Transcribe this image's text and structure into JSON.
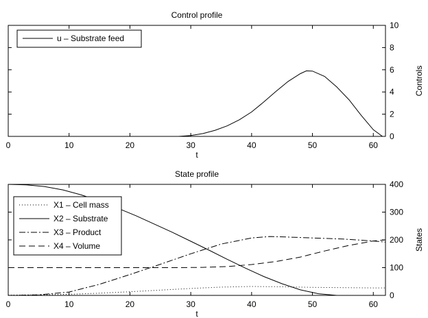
{
  "chart_data": [
    {
      "type": "line",
      "title": "Control profile",
      "xlabel": "t",
      "ylabel": "Controls",
      "xlim": [
        0,
        62
      ],
      "ylim": [
        0,
        10
      ],
      "xticks": [
        0,
        10,
        20,
        30,
        40,
        50,
        60
      ],
      "yticks": [
        0,
        2,
        4,
        6,
        8,
        10
      ],
      "y_axis_side": "right",
      "grid": false,
      "legend": "top-left",
      "series": [
        {
          "name": "u – Substrate feed",
          "style": "solid",
          "x": [
            0,
            28,
            30,
            32,
            34,
            36,
            38,
            40,
            42,
            44,
            46,
            48,
            49,
            50,
            52,
            54,
            56,
            58,
            60,
            61.5
          ],
          "y": [
            0,
            0,
            0.08,
            0.25,
            0.55,
            0.95,
            1.5,
            2.2,
            3.1,
            4.05,
            4.95,
            5.65,
            5.9,
            5.88,
            5.4,
            4.45,
            3.3,
            1.9,
            0.6,
            0
          ]
        }
      ]
    },
    {
      "type": "line",
      "title": "State profile",
      "xlabel": "t",
      "ylabel": "States",
      "xlim": [
        0,
        62
      ],
      "ylim": [
        0,
        400
      ],
      "xticks": [
        0,
        10,
        20,
        30,
        40,
        50,
        60
      ],
      "yticks": [
        0,
        100,
        200,
        300,
        400
      ],
      "y_axis_side": "right",
      "grid": false,
      "legend": "top-left",
      "series": [
        {
          "name": "X1 – Cell mass",
          "style": "dotted",
          "x": [
            0,
            5,
            10,
            15,
            20,
            25,
            30,
            35,
            40,
            45,
            50,
            55,
            60,
            62
          ],
          "y": [
            1,
            2,
            4,
            8,
            13,
            19,
            25,
            30,
            32,
            31,
            29,
            28,
            27,
            27
          ]
        },
        {
          "name": "X2 – Substrate",
          "style": "solid",
          "x": [
            0,
            3,
            6,
            9,
            12,
            15,
            18,
            21,
            24,
            27,
            30,
            33,
            36,
            39,
            42,
            45,
            48,
            51,
            54,
            55
          ],
          "y": [
            400,
            398,
            392,
            380,
            362,
            340,
            314,
            287,
            257,
            227,
            195,
            163,
            130,
            98,
            68,
            42,
            20,
            6,
            0,
            0
          ]
        },
        {
          "name": "X3 – Product",
          "style": "dashdot",
          "x": [
            0,
            5,
            10,
            15,
            20,
            25,
            30,
            35,
            40,
            43,
            46,
            50,
            55,
            60,
            62
          ],
          "y": [
            0,
            2,
            12,
            40,
            75,
            112,
            150,
            185,
            207,
            212,
            210,
            207,
            203,
            196,
            192
          ]
        },
        {
          "name": "X4 – Volume",
          "style": "dashed",
          "x": [
            0,
            10,
            20,
            28,
            32,
            36,
            40,
            44,
            48,
            52,
            56,
            60,
            62
          ],
          "y": [
            100,
            100,
            100,
            100,
            101,
            104,
            111,
            122,
            138,
            160,
            180,
            196,
            200
          ]
        }
      ]
    }
  ]
}
